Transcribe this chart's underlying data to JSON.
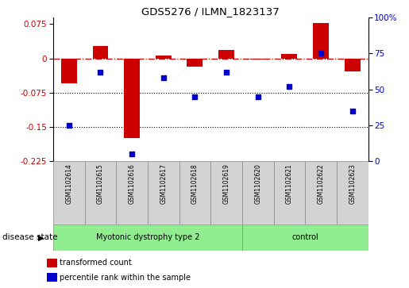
{
  "title": "GDS5276 / ILMN_1823137",
  "samples": [
    "GSM1102614",
    "GSM1102615",
    "GSM1102616",
    "GSM1102617",
    "GSM1102618",
    "GSM1102619",
    "GSM1102620",
    "GSM1102621",
    "GSM1102622",
    "GSM1102623"
  ],
  "bar_values": [
    -0.055,
    0.028,
    -0.175,
    0.007,
    -0.018,
    0.018,
    -0.003,
    0.01,
    0.078,
    -0.028
  ],
  "dot_values": [
    25,
    62,
    5,
    58,
    45,
    62,
    45,
    52,
    75,
    35
  ],
  "bar_color": "#cc0000",
  "dot_color": "#0000cc",
  "ylim_left": [
    -0.225,
    0.09
  ],
  "ylim_right": [
    0,
    100
  ],
  "yticks_left": [
    0.075,
    0,
    -0.075,
    -0.15,
    -0.225
  ],
  "yticks_right": [
    100,
    75,
    50,
    25,
    0
  ],
  "group_box_color": "#d3d3d3",
  "green_color": "#90EE90",
  "groups": [
    {
      "label": "Myotonic dystrophy type 2",
      "start": 0,
      "end": 6
    },
    {
      "label": "control",
      "start": 6,
      "end": 10
    }
  ],
  "legend_labels": [
    "transformed count",
    "percentile rank within the sample"
  ],
  "legend_colors": [
    "#cc0000",
    "#0000cc"
  ],
  "disease_state_label": "disease state"
}
